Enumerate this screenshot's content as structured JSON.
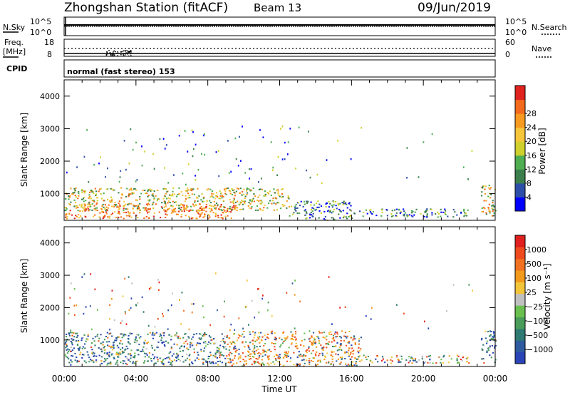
{
  "header": {
    "title": "Zhongshan Station (fitACF)",
    "beam": "Beam 13",
    "date": "09/Jun/2019"
  },
  "noise_panel": {
    "left_label": "N.Sky",
    "right_label": "N.Search",
    "left_ticks": [
      "10^5",
      "10^0"
    ],
    "right_ticks": [
      "10^5",
      "10^0"
    ]
  },
  "freq_panel": {
    "left_label_1": "Freq.",
    "left_label_2": "[MHz]",
    "right_label": "Nave",
    "left_ticks": [
      "18",
      "8"
    ],
    "right_ticks": [
      "60",
      "0"
    ],
    "cpid_label": "CPID",
    "mode_text": "normal (fast stereo) 153"
  },
  "x_axis": {
    "label": "Time UT",
    "ticks": [
      "00:00",
      "04:00",
      "08:00",
      "12:00",
      "16:00",
      "20:00",
      "00:00"
    ]
  },
  "colorbars": {
    "power": {
      "label": "Power [dB]",
      "colors": [
        "#0000ff",
        "#2e4fa8",
        "#3a7f4c",
        "#4fae52",
        "#cfd02c",
        "#f5c53a",
        "#f89a1f",
        "#f26a1b",
        "#e0221e"
      ],
      "ticks": [
        "4",
        "8",
        "12",
        "16",
        "20",
        "24",
        "28"
      ]
    },
    "velocity": {
      "label": "Velocity [m s⁻¹]",
      "colors": [
        "#2a44b8",
        "#2e5aa0",
        "#2f7a72",
        "#4a9c5a",
        "#69c04f",
        "#c0c0c0",
        "#f2c43a",
        "#f29a1a",
        "#f07222",
        "#ee4a1e",
        "#e0201e"
      ],
      "ticks": [
        "1000",
        "500",
        "100",
        "25",
        "−25",
        "−100",
        "−500",
        "−1000"
      ]
    }
  },
  "chart_data": [
    {
      "type": "heatmap",
      "title": "Power",
      "xlabel": "Time UT",
      "ylabel": "Slant Range [km]",
      "x_ticks": [
        "00:00",
        "04:00",
        "08:00",
        "12:00",
        "16:00",
        "20:00",
        "00:00"
      ],
      "y_ticks": [
        1000,
        2000,
        3000,
        4000
      ],
      "xlim_hours": [
        0,
        24
      ],
      "ylim_km": [
        180,
        4500
      ],
      "colorbar_label": "Power [dB]",
      "colorbar_ticks": [
        4,
        8,
        12,
        16,
        20,
        24,
        28
      ],
      "regions": [
        {
          "t0": 0.0,
          "t1": 9.5,
          "r0": 250,
          "r1": 700,
          "level": "high"
        },
        {
          "t0": 0.0,
          "t1": 12.5,
          "r0": 500,
          "r1": 1200,
          "level": "mid"
        },
        {
          "t0": 12.5,
          "t1": 16.0,
          "r0": 200,
          "r1": 800,
          "level": "low"
        },
        {
          "t0": 16.0,
          "t1": 22.5,
          "r0": 300,
          "r1": 550,
          "level": "low"
        },
        {
          "t0": 23.2,
          "t1": 24.0,
          "r0": 300,
          "r1": 1300,
          "level": "mid"
        }
      ]
    },
    {
      "type": "heatmap",
      "title": "Velocity",
      "xlabel": "Time UT",
      "ylabel": "Slant Range [km]",
      "x_ticks": [
        "00:00",
        "04:00",
        "08:00",
        "12:00",
        "16:00",
        "20:00",
        "00:00"
      ],
      "y_ticks": [
        1000,
        2000,
        3000,
        4000
      ],
      "xlim_hours": [
        0,
        24
      ],
      "ylim_km": [
        180,
        4500
      ],
      "colorbar_label": "Velocity [m s⁻¹]",
      "colorbar_ticks": [
        1000,
        500,
        100,
        25,
        -25,
        -100,
        -500,
        -1000
      ],
      "regions": [
        {
          "t0": 0.0,
          "t1": 9.0,
          "r0": 250,
          "r1": 1250,
          "level": "toward"
        },
        {
          "t0": 9.0,
          "t1": 16.5,
          "r0": 200,
          "r1": 1300,
          "level": "away"
        },
        {
          "t0": 16.5,
          "t1": 22.5,
          "r0": 300,
          "r1": 550,
          "level": "mixed"
        },
        {
          "t0": 23.2,
          "t1": 24.0,
          "r0": 300,
          "r1": 1300,
          "level": "toward"
        }
      ]
    }
  ]
}
